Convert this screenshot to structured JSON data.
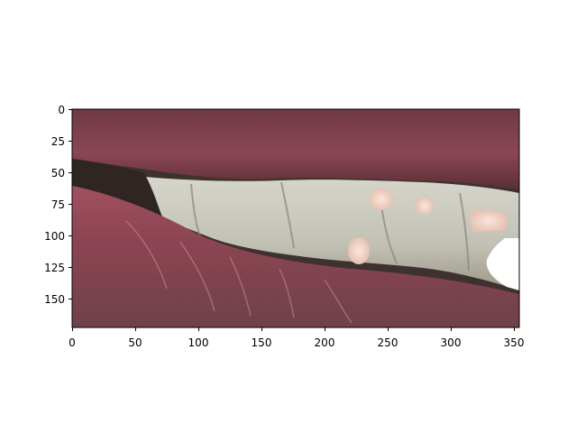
{
  "figure": {
    "kind": "image-plot",
    "subject": "close-up of lips and teeth with bright white spot highlights",
    "colors": {
      "background": "#ffffff",
      "axes": "#000000",
      "lip": "#8a4452",
      "teeth": "#c9c8bd",
      "spot": "#f2d2c4",
      "spot_bright": "#ffffff"
    },
    "x_ticks": [
      "0",
      "50",
      "100",
      "150",
      "200",
      "250",
      "300",
      "350"
    ],
    "y_ticks": [
      "0",
      "25",
      "50",
      "75",
      "100",
      "125",
      "150"
    ],
    "x_range": [
      0,
      354
    ],
    "y_range": [
      0,
      172
    ]
  }
}
